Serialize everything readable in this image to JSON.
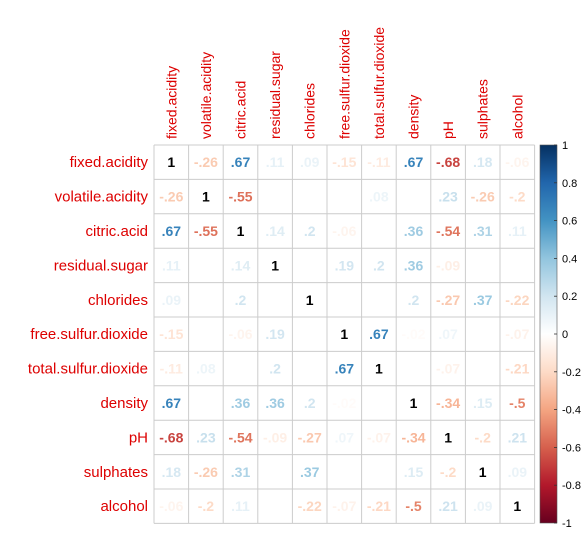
{
  "chart_data": {
    "type": "heatmap",
    "variables": [
      "fixed.acidity",
      "volatile.acidity",
      "citric.acid",
      "residual.sugar",
      "chlorides",
      "free.sulfur.dioxide",
      "total.sulfur.dioxide",
      "density",
      "pH",
      "sulphates",
      "alcohol"
    ],
    "matrix": [
      [
        1,
        -0.26,
        0.67,
        0.11,
        0.09,
        -0.15,
        -0.11,
        0.67,
        -0.68,
        0.18,
        -0.06
      ],
      [
        -0.26,
        1,
        -0.55,
        null,
        null,
        null,
        0.08,
        null,
        0.23,
        -0.26,
        -0.2
      ],
      [
        0.67,
        -0.55,
        1,
        0.14,
        0.2,
        -0.06,
        null,
        0.36,
        -0.54,
        0.31,
        0.11
      ],
      [
        0.11,
        null,
        0.14,
        1,
        null,
        0.19,
        0.2,
        0.36,
        -0.09,
        null,
        null
      ],
      [
        0.09,
        null,
        0.2,
        null,
        1,
        null,
        null,
        0.2,
        -0.27,
        0.37,
        -0.22
      ],
      [
        -0.15,
        null,
        -0.06,
        0.19,
        null,
        1,
        0.67,
        -0.02,
        0.07,
        null,
        -0.07
      ],
      [
        -0.11,
        0.08,
        null,
        0.2,
        null,
        0.67,
        1,
        null,
        -0.07,
        null,
        -0.21
      ],
      [
        0.67,
        null,
        0.36,
        0.36,
        0.2,
        -0.02,
        null,
        1,
        -0.34,
        0.15,
        -0.5
      ],
      [
        -0.68,
        0.23,
        -0.54,
        -0.09,
        -0.27,
        0.07,
        -0.07,
        -0.34,
        1,
        -0.2,
        0.21
      ],
      [
        0.18,
        -0.26,
        0.31,
        null,
        0.37,
        null,
        null,
        0.15,
        -0.2,
        1,
        0.09
      ],
      [
        -0.06,
        -0.2,
        0.11,
        null,
        -0.22,
        -0.07,
        -0.21,
        -0.5,
        0.21,
        0.09,
        1
      ]
    ],
    "colorbar": {
      "range": [
        -1,
        1
      ],
      "ticks": [
        "1",
        "0.8",
        "0.6",
        "0.4",
        "0.2",
        "0",
        "-0.2",
        "-0.4",
        "-0.6",
        "-0.8",
        "-1"
      ]
    },
    "colors": {
      "label": "#dd0000",
      "grid": "#cccccc",
      "scale": [
        "#67001f",
        "#b2182b",
        "#d6604d",
        "#f4a582",
        "#fddbc7",
        "#ffffff",
        "#d1e5f0",
        "#92c5de",
        "#4393c3",
        "#2166ac",
        "#053061"
      ]
    }
  }
}
